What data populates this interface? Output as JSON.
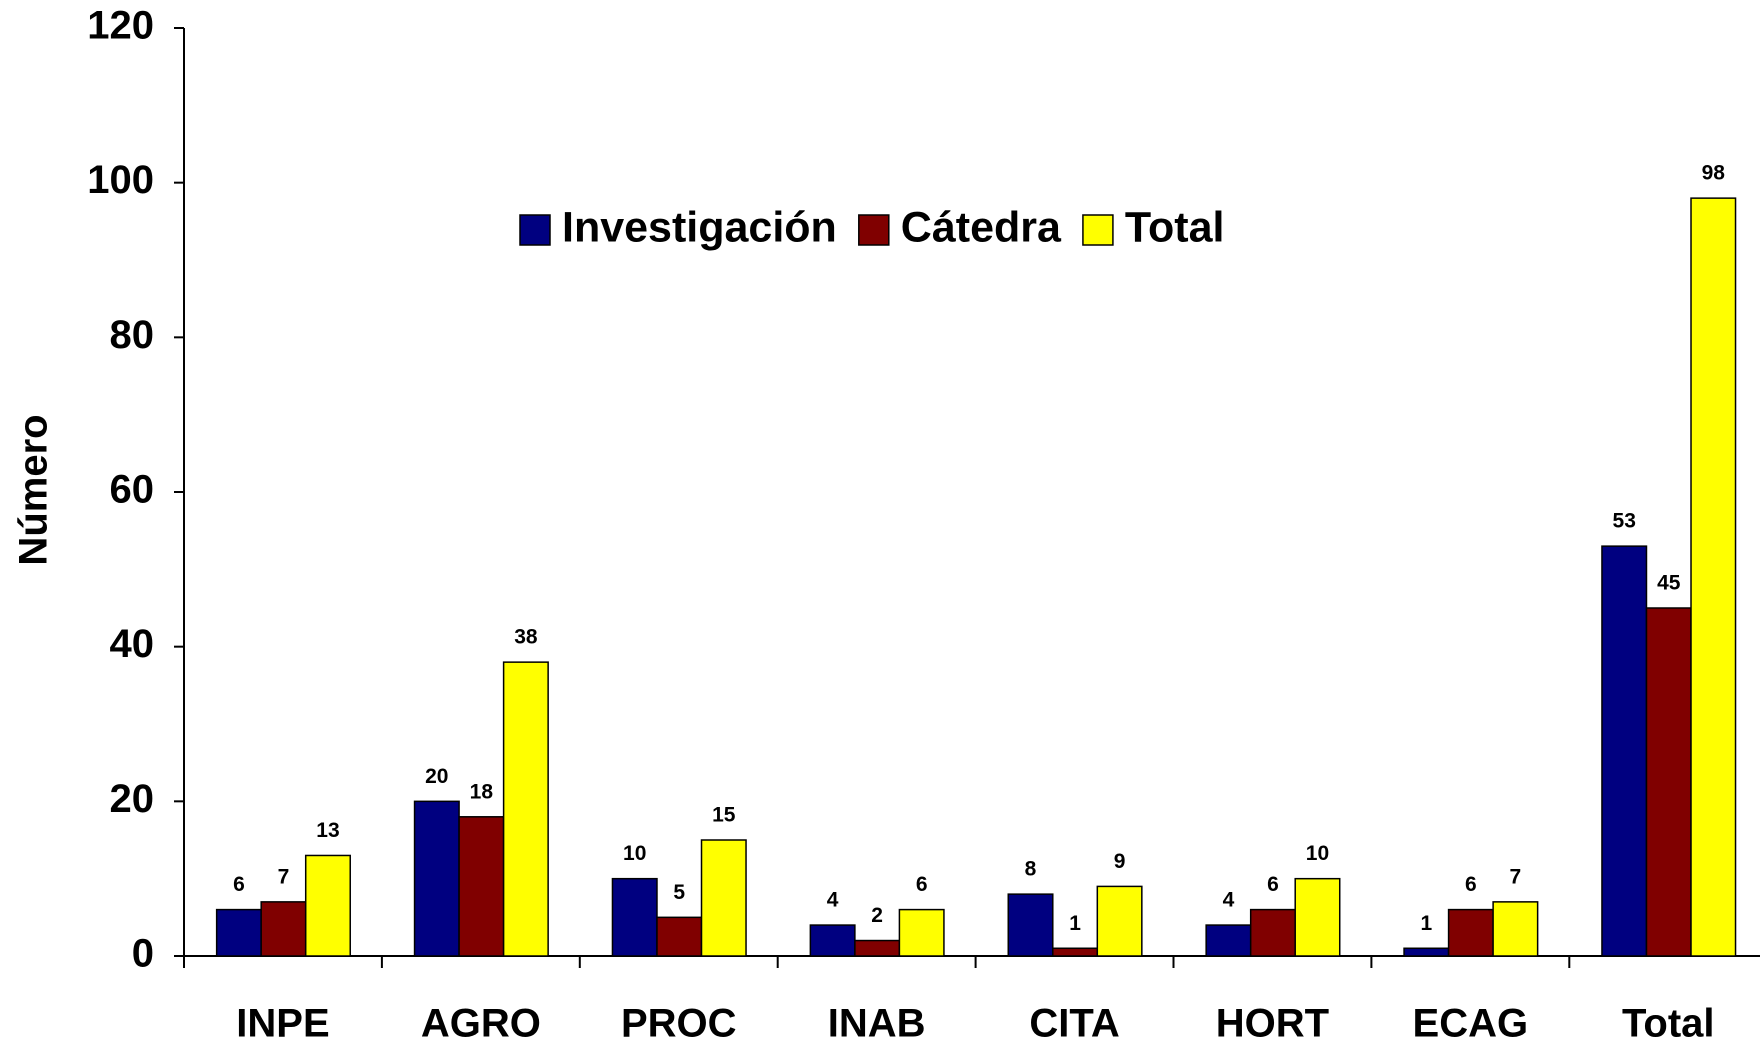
{
  "chart_data": {
    "type": "bar",
    "y_label": "Número",
    "categories": [
      "INPE",
      "AGRO",
      "PROC",
      "INAB",
      "CITA",
      "HORT",
      "ECAG",
      "Total"
    ],
    "series": [
      {
        "name": "Investigación",
        "color": "#000080",
        "values": [
          6,
          20,
          10,
          4,
          8,
          4,
          1,
          53
        ]
      },
      {
        "name": "Cátedra",
        "color": "#800000",
        "values": [
          7,
          18,
          5,
          2,
          1,
          6,
          6,
          45
        ]
      },
      {
        "name": "Total",
        "color": "#ffff00",
        "values": [
          13,
          38,
          15,
          6,
          9,
          10,
          7,
          98
        ]
      }
    ],
    "ylim": [
      0,
      120
    ],
    "yticks": [
      0,
      20,
      40,
      60,
      80,
      100,
      120
    ],
    "grid": false,
    "legend": "top"
  }
}
